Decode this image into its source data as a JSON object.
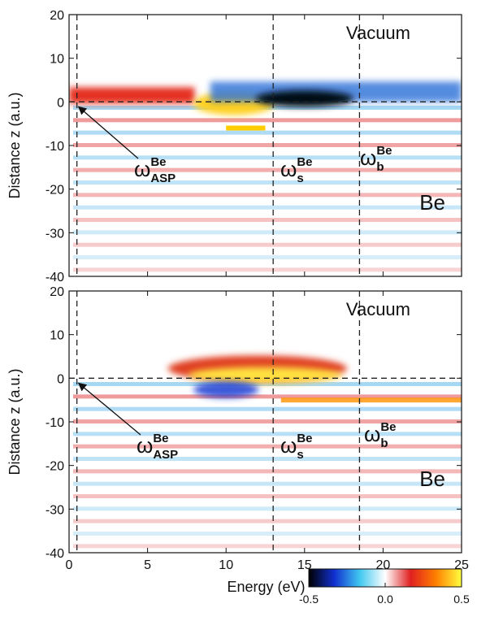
{
  "chart_data": [
    {
      "type": "heatmap",
      "ylabel": "Distance z (a.u.)",
      "xlim": [
        0,
        25
      ],
      "ylim": [
        -40,
        20
      ],
      "xticks": [
        0,
        5,
        10,
        15,
        20,
        25
      ],
      "yticks": [
        -40,
        -30,
        -20,
        -10,
        0,
        10,
        20
      ],
      "show_xtick_labels": false,
      "vlines": [
        0.5,
        13,
        18.5
      ],
      "hlines": [
        0
      ],
      "annotations": [
        "Vacuum",
        "Be"
      ],
      "omega_labels": [
        {
          "symbol": "ω",
          "sup": "Be",
          "sub": "ASP"
        },
        {
          "symbol": "ω",
          "sup": "Be",
          "sub": "s"
        },
        {
          "symbol": "ω",
          "sup": "Be",
          "sub": "b"
        }
      ]
    },
    {
      "type": "heatmap",
      "ylabel": "Distance z (a.u.)",
      "xlabel": "Energy (eV)",
      "xlim": [
        0,
        25
      ],
      "ylim": [
        -40,
        20
      ],
      "xticks": [
        0,
        5,
        10,
        15,
        20,
        25
      ],
      "yticks": [
        -40,
        -30,
        -20,
        -10,
        0,
        10,
        20
      ],
      "show_xtick_labels": true,
      "vlines": [
        0.5,
        13,
        18.5
      ],
      "hlines": [
        0
      ],
      "annotations": [
        "Vacuum",
        "Be"
      ],
      "omega_labels": [
        {
          "symbol": "ω",
          "sup": "Be",
          "sub": "ASP"
        },
        {
          "symbol": "ω",
          "sup": "Be",
          "sub": "s"
        },
        {
          "symbol": "ω",
          "sup": "Be",
          "sub": "b"
        }
      ]
    },
    {
      "type": "colorbar",
      "lim": [
        -0.5,
        0.5
      ],
      "ticks": [
        -0.5,
        {
          "value": 0,
          "label": "0.0"
        },
        0.5
      ],
      "colors": [
        "#000000",
        "#1030d0",
        "#40c8f0",
        "#ffffff",
        "#e02020",
        "#ff8000",
        "#ffff40"
      ]
    }
  ]
}
